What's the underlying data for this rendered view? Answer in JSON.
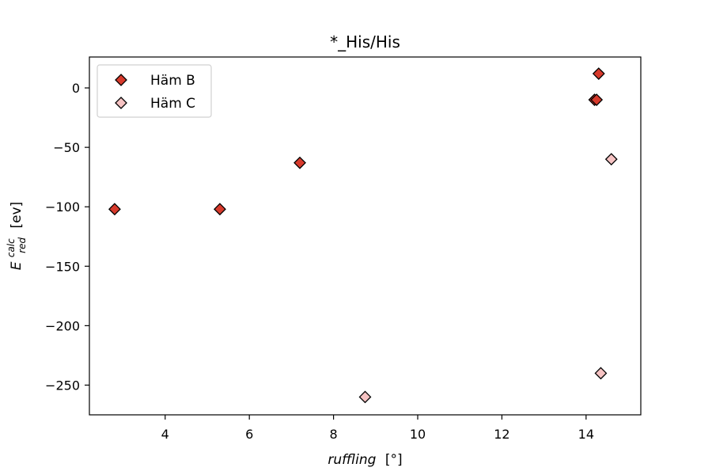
{
  "chart_data": {
    "type": "scatter",
    "title": "*_His/His",
    "xlabel": "ruffling",
    "xlabel_unit": "[°]",
    "ylabel": {
      "base": "E",
      "superscript": "calc",
      "subscript": "red",
      "unit": "[ev]"
    },
    "xlim": [
      2.2,
      15.3
    ],
    "ylim": [
      -275,
      26
    ],
    "xticks": [
      4,
      6,
      8,
      10,
      12,
      14
    ],
    "yticks": [
      0,
      -50,
      -100,
      -150,
      -200,
      -250
    ],
    "ytick_labels": [
      "0",
      "−50",
      "−100",
      "−150",
      "−200",
      "−250"
    ],
    "grid": false,
    "legend_placement": "top-left",
    "series": [
      {
        "name": "Häm B",
        "color": "#d73a2c",
        "edge_color": "#000000",
        "marker": "diamond",
        "points": [
          {
            "x": 2.8,
            "y": -102
          },
          {
            "x": 5.3,
            "y": -102
          },
          {
            "x": 7.2,
            "y": -63
          },
          {
            "x": 14.2,
            "y": -10
          },
          {
            "x": 14.25,
            "y": -10
          },
          {
            "x": 14.3,
            "y": 12
          }
        ]
      },
      {
        "name": "Häm C",
        "color": "#f6c3c3",
        "edge_color": "#000000",
        "marker": "diamond",
        "points": [
          {
            "x": 8.75,
            "y": -260
          },
          {
            "x": 14.35,
            "y": -240
          },
          {
            "x": 14.6,
            "y": -60
          }
        ]
      }
    ]
  }
}
